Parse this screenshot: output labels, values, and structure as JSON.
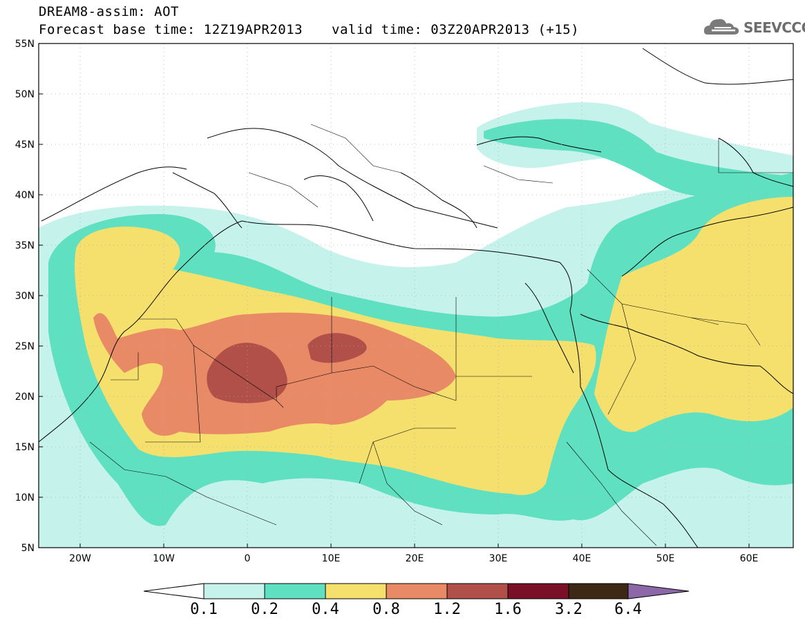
{
  "header": {
    "title_line1": "DREAM8-assim: AOT",
    "title_line2": "Forecast base time: 12Z19APR2013",
    "valid_time": "valid time: 03Z20APR2013 (+15)",
    "logo_text": "SEEVCCC",
    "logo_icon": "cloud-logo-icon"
  },
  "map": {
    "lon_range": [
      -25,
      65
    ],
    "lat_range": [
      5,
      55
    ],
    "grid": "dotted",
    "lat_labels": [
      "55N",
      "50N",
      "45N",
      "40N",
      "35N",
      "30N",
      "25N",
      "20N",
      "15N",
      "10N",
      "5N"
    ],
    "lon_labels": [
      "20W",
      "10W",
      "0",
      "10E",
      "20E",
      "30E",
      "40E",
      "50E",
      "60E"
    ]
  },
  "colorbar": {
    "levels": [
      "0.1",
      "0.2",
      "0.4",
      "0.8",
      "1.2",
      "1.6",
      "3.2",
      "6.4"
    ],
    "colors": [
      "#c6f2ec",
      "#5fe0c0",
      "#f5e06e",
      "#e88a66",
      "#b05048",
      "#7a0f28",
      "#3c2814",
      "#8c68a8"
    ]
  }
}
